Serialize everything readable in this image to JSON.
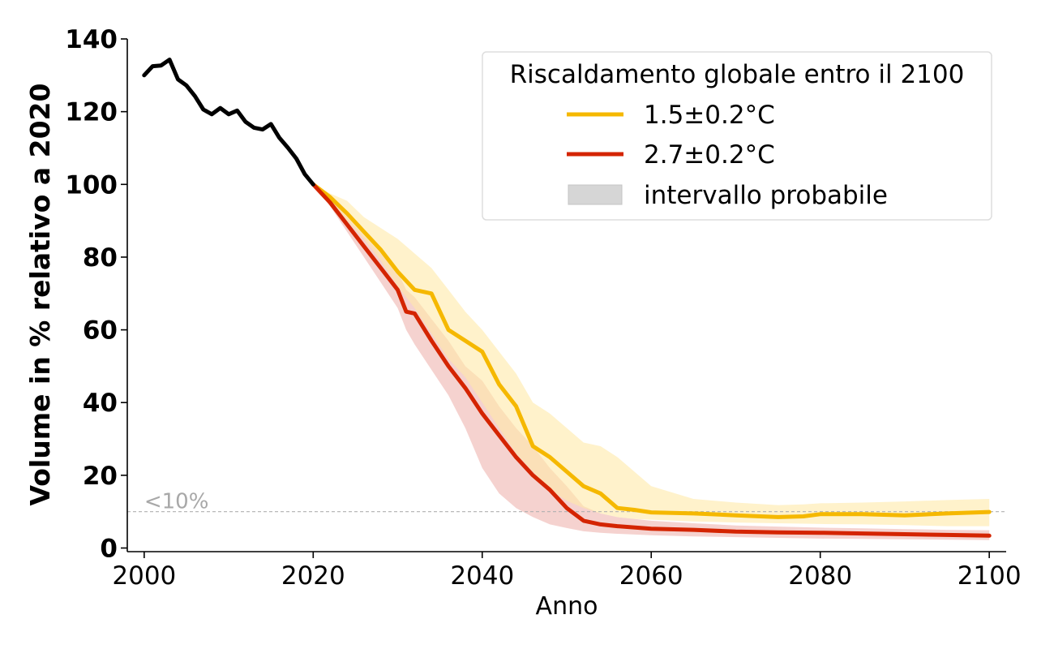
{
  "chart_data": {
    "type": "line",
    "xlabel": "Anno",
    "ylabel": "Volume in % relativo a 2020",
    "xlim": [
      1998,
      2102
    ],
    "ylim": [
      -1,
      140
    ],
    "xticks": [
      2000,
      2020,
      2040,
      2060,
      2080,
      2100
    ],
    "yticks": [
      0,
      20,
      40,
      60,
      80,
      100,
      120,
      140
    ],
    "threshold": {
      "value": 10,
      "label": "<10%"
    },
    "legend": {
      "title": "Riscaldamento globale entro il 2100",
      "placement": "top-right",
      "range_label": "intervallo probabile",
      "range_color": "#d6d6d6"
    },
    "historical": {
      "color": "#000000",
      "x": [
        2000,
        2001,
        2002,
        2003,
        2004,
        2005,
        2006,
        2007,
        2008,
        2009,
        2010,
        2011,
        2012,
        2013,
        2014,
        2015,
        2016,
        2017,
        2018,
        2019,
        2020
      ],
      "y": [
        130,
        132.5,
        132.7,
        134.3,
        128.9,
        127.2,
        124.3,
        120.6,
        119.3,
        121,
        119.3,
        120.3,
        117.2,
        115.6,
        115.1,
        116.6,
        112.8,
        110.1,
        107.1,
        102.8,
        100
      ]
    },
    "series": [
      {
        "name": "1.5±0.2°C",
        "color": "#f5b800",
        "fill": "#ffe9a8",
        "x": [
          2020,
          2022,
          2024,
          2026,
          2028,
          2030,
          2032,
          2034,
          2036,
          2038,
          2040,
          2042,
          2044,
          2046,
          2048,
          2050,
          2052,
          2054,
          2056,
          2058,
          2060,
          2065,
          2070,
          2075,
          2078,
          2080,
          2085,
          2090,
          2095,
          2100
        ],
        "y": [
          100,
          96.5,
          92,
          87,
          82,
          76,
          71,
          70,
          60,
          57,
          54,
          45,
          39,
          28,
          25,
          21,
          17,
          15,
          11,
          10.5,
          9.8,
          9.5,
          9.0,
          8.5,
          8.7,
          9.3,
          9.3,
          9.0,
          9.5,
          9.9
        ],
        "lower": [
          100,
          95.5,
          90,
          85,
          79,
          72,
          66,
          59,
          52,
          47,
          40,
          33,
          26,
          21,
          16,
          13,
          11,
          9.5,
          8.5,
          8.0,
          7.8,
          7.3,
          7.0,
          6.8,
          6.7,
          6.6,
          6.5,
          6.3,
          6.0,
          6.0
        ],
        "upper": [
          100,
          97.5,
          95.5,
          91,
          88,
          85,
          81,
          77,
          71,
          65,
          60,
          54,
          48,
          40,
          37,
          33,
          29,
          28,
          25,
          21,
          17,
          13.5,
          12.5,
          11.8,
          12.0,
          12.3,
          12.5,
          12.8,
          13.2,
          13.5
        ]
      },
      {
        "name": "2.7±0.2°C",
        "color": "#d42400",
        "fill": "#f2c3bf",
        "x": [
          2020,
          2022,
          2024,
          2026,
          2028,
          2030,
          2031,
          2032,
          2034,
          2036,
          2038,
          2040,
          2042,
          2044,
          2046,
          2048,
          2050,
          2052,
          2054,
          2056,
          2060,
          2065,
          2070,
          2075,
          2080,
          2085,
          2090,
          2095,
          2100
        ],
        "y": [
          100,
          95,
          89,
          83,
          77,
          71,
          65,
          64.5,
          57,
          50,
          44,
          37,
          31,
          25,
          20,
          16,
          11,
          7.5,
          6.5,
          6.0,
          5.3,
          5.0,
          4.5,
          4.3,
          4.2,
          4.0,
          3.8,
          3.6,
          3.4
        ],
        "lower": [
          100,
          94,
          87,
          80,
          73,
          66,
          60,
          56,
          49,
          42,
          33,
          22,
          15,
          11,
          8.5,
          6.5,
          5.5,
          4.6,
          4.2,
          3.9,
          3.5,
          3.2,
          3.0,
          2.8,
          2.6,
          2.5,
          2.4,
          2.3,
          2.2
        ],
        "upper": [
          100,
          96,
          91,
          86,
          81,
          76,
          71,
          69,
          63,
          57,
          50,
          46,
          39,
          33,
          28,
          22,
          17,
          11.5,
          9.5,
          8.5,
          7.5,
          6.8,
          6.2,
          5.9,
          5.6,
          5.4,
          5.2,
          5.0,
          4.9
        ]
      }
    ]
  }
}
